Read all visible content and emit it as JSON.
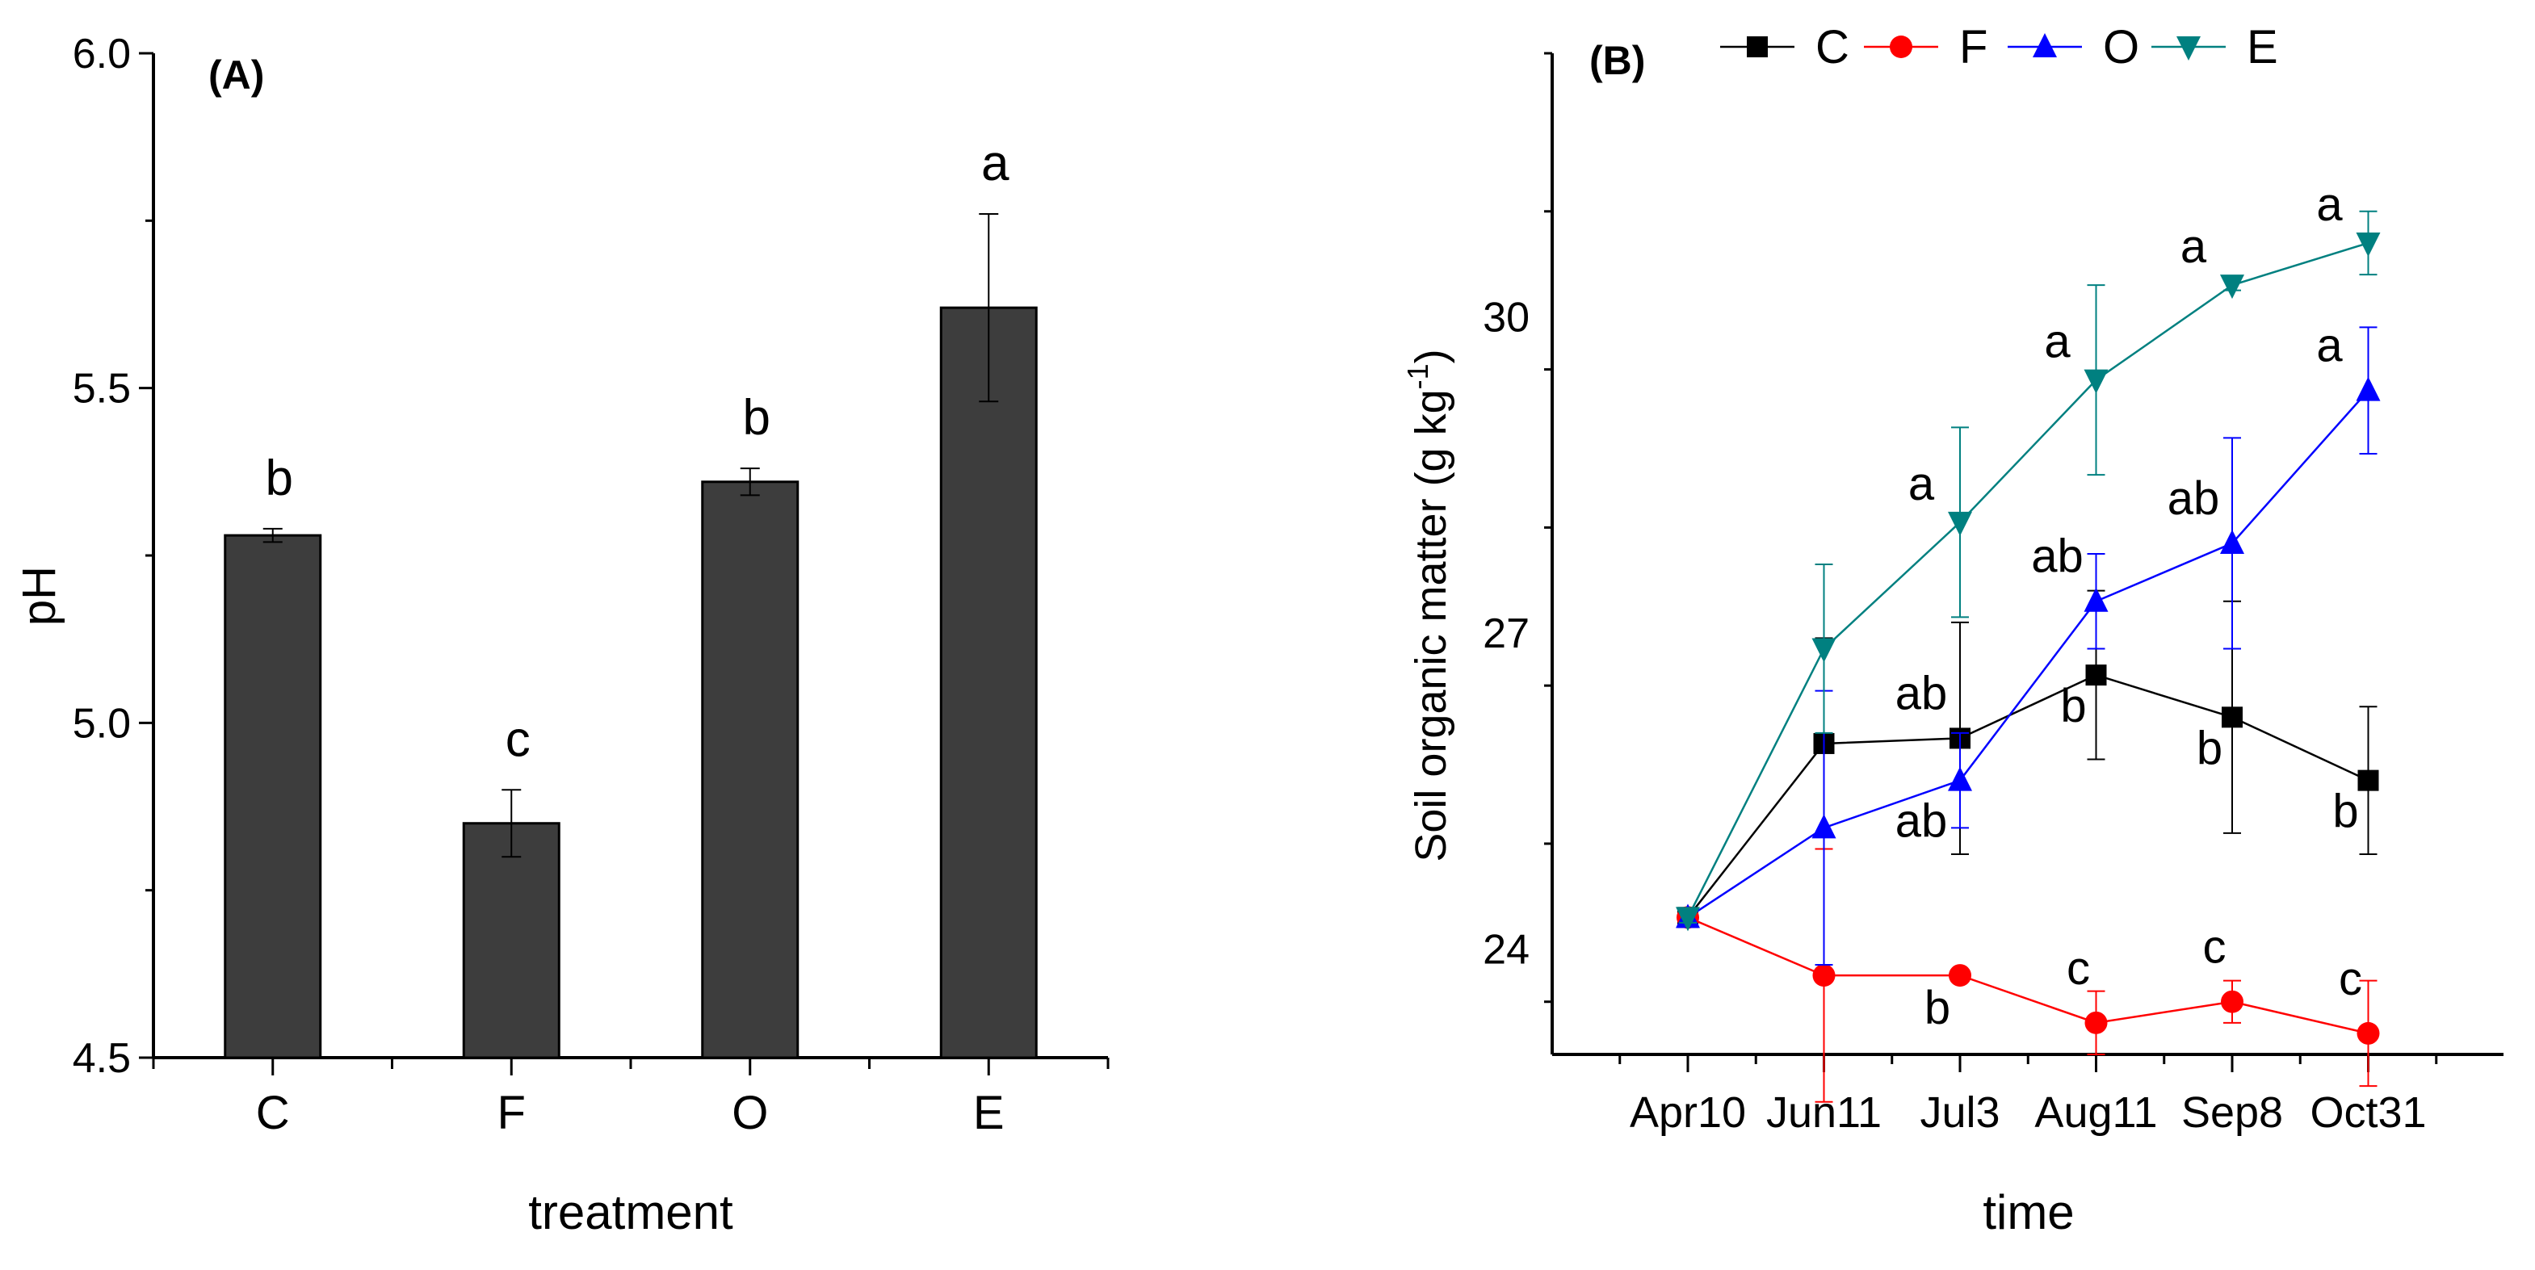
{
  "chart_data": [
    {
      "type": "bar",
      "panel_label": "(A)",
      "xlabel": "treatment",
      "ylabel": "pH",
      "ylim": [
        4.5,
        6.0
      ],
      "yticks": [
        "4.5",
        "5.0",
        "5.5",
        "6.0"
      ],
      "categories": [
        "C",
        "F",
        "O",
        "E"
      ],
      "values": [
        5.28,
        4.85,
        5.36,
        5.62
      ],
      "errors": [
        0.01,
        0.05,
        0.02,
        0.14
      ],
      "letters": [
        "b",
        "c",
        "b",
        "a"
      ],
      "bar_color": "#3d3d3d"
    },
    {
      "type": "line",
      "panel_label": "(B)",
      "xlabel": "time",
      "ylabel_main": "Soil organic matter (g kg",
      "ylabel_sup": "-1",
      "ylabel_end": ")",
      "ylim": [
        23.0,
        32.5
      ],
      "yticks": [
        "24",
        "27",
        "30"
      ],
      "x": [
        "Apr10",
        "Jun11",
        "Jul3",
        "Aug11",
        "Sep8",
        "Oct31"
      ],
      "series": [
        {
          "name": "C",
          "color": "#000000",
          "marker": "square",
          "values": [
            24.3,
            25.95,
            26.0,
            26.6,
            26.2,
            25.6
          ],
          "errors": [
            0.05,
            1.0,
            1.1,
            0.8,
            1.1,
            0.7
          ],
          "letters": [
            "",
            "",
            "ab",
            "b",
            "b",
            "b"
          ]
        },
        {
          "name": "F",
          "color": "#ff0000",
          "marker": "circle",
          "values": [
            24.3,
            23.75,
            23.75,
            23.3,
            23.5,
            23.2
          ],
          "errors": [
            0.05,
            1.2,
            0.05,
            0.3,
            0.2,
            0.5
          ],
          "letters": [
            "",
            "",
            "b",
            "c",
            "c",
            "c"
          ]
        },
        {
          "name": "O",
          "color": "#0000ff",
          "marker": "triangle-up",
          "values": [
            24.3,
            25.15,
            25.6,
            27.3,
            27.85,
            29.3
          ],
          "errors": [
            0.05,
            1.3,
            0.45,
            0.45,
            1.0,
            0.6
          ],
          "letters": [
            "",
            "",
            "ab",
            "ab",
            "ab",
            "a"
          ]
        },
        {
          "name": "E",
          "color": "#008080",
          "marker": "triangle-down",
          "values": [
            24.3,
            26.85,
            28.05,
            29.4,
            30.3,
            30.7
          ],
          "errors": [
            0.05,
            0.8,
            0.9,
            0.9,
            0.05,
            0.3
          ],
          "letters": [
            "",
            "",
            "a",
            "a",
            "a",
            "a"
          ]
        }
      ]
    }
  ]
}
